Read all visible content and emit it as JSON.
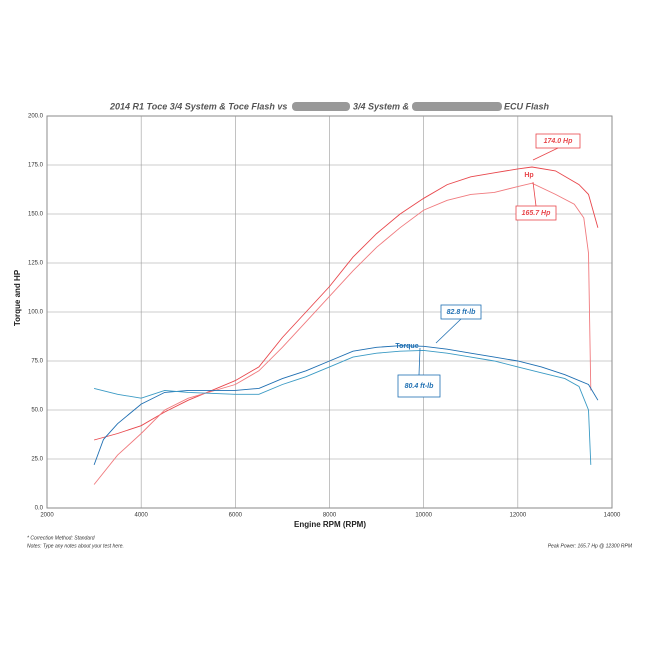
{
  "chart_data": {
    "type": "line",
    "title_parts": [
      "2014 R1 Toce 3/4 System & Toce Flash vs",
      "3/4 System &",
      "ECU Flash"
    ],
    "y_label": "Torque and HP",
    "x_label": "Engine RPM (RPM)",
    "xlim": [
      2000,
      14000
    ],
    "xticks": [
      2000,
      4000,
      6000,
      8000,
      10000,
      12000,
      14000
    ],
    "ylim": [
      0,
      200
    ],
    "yticks": [
      {
        "value": 0,
        "label": "0.0"
      },
      {
        "value": 25,
        "label": "25.0"
      },
      {
        "value": 50,
        "label": "50.0"
      },
      {
        "value": 75,
        "label": "75.0"
      },
      {
        "value": 100,
        "label": "100.0"
      },
      {
        "value": 125,
        "label": "125.0"
      },
      {
        "value": 150,
        "label": "150.0"
      },
      {
        "value": 175,
        "label": "175.0"
      },
      {
        "value": 200,
        "label": "200.0"
      }
    ],
    "grid": true,
    "series": [
      {
        "color": "#e8474c",
        "x": [
          3000,
          3500,
          4000,
          4500,
          5000,
          5500,
          6000,
          6500,
          7000,
          7500,
          8000,
          8500,
          9000,
          9500,
          10000,
          10500,
          11000,
          11500,
          12000,
          12300,
          12800,
          13300,
          13500,
          13700
        ],
        "values": [
          34.7,
          38,
          42,
          49,
          55,
          60,
          65,
          72,
          87,
          100,
          113,
          128,
          140,
          150,
          158,
          165,
          169,
          171,
          173,
          174,
          172,
          165,
          160,
          143
        ]
      },
      {
        "color": "#f07a7e",
        "x": [
          3000,
          3500,
          4000,
          4500,
          5000,
          6000,
          6500,
          7000,
          7500,
          8000,
          8500,
          9000,
          9500,
          10000,
          10500,
          11000,
          11500,
          12000,
          12300,
          12800,
          13200,
          13400,
          13500,
          13550
        ],
        "values": [
          12,
          27,
          38,
          50,
          56,
          63,
          70,
          82,
          95,
          108,
          121,
          133,
          143,
          152,
          157,
          160,
          161,
          164,
          165.7,
          160,
          155,
          148,
          130,
          60
        ]
      },
      {
        "color": "#1f6fb2",
        "x": [
          3000,
          3200,
          3500,
          4000,
          4500,
          5000,
          6000,
          6500,
          7000,
          7500,
          8000,
          8500,
          9000,
          9500,
          10000,
          10500,
          11000,
          11500,
          12000,
          12500,
          13000,
          13500,
          13700
        ],
        "values": [
          22,
          35,
          43,
          53,
          59,
          60,
          60,
          61,
          66,
          70,
          75,
          80,
          82,
          82.8,
          82.5,
          81,
          79,
          77,
          75,
          72,
          68,
          63,
          55
        ]
      },
      {
        "color": "#3a9ac4",
        "x": [
          3000,
          3500,
          4000,
          4500,
          5000,
          6000,
          6500,
          7000,
          7500,
          8000,
          8500,
          9000,
          9500,
          10000,
          10500,
          11000,
          11500,
          12000,
          12500,
          13000,
          13300,
          13500,
          13550
        ],
        "values": [
          61,
          58,
          56,
          60,
          59,
          58,
          58,
          63,
          67,
          72,
          77,
          79,
          80,
          80.4,
          79,
          77,
          75,
          72,
          69,
          66,
          62,
          50,
          22
        ]
      }
    ],
    "annotations": [
      "174.0 Hp",
      "165.7 Hp",
      "82.8 ft-lb",
      "80.4 ft-lb",
      "Hp",
      "Torque"
    ],
    "footer_left": [
      "* Correction Method: Standard",
      "Notes: Type any notes about your test here."
    ],
    "footer_right": "Peak Power: 165.7 Hp @ 12300 RPM"
  }
}
